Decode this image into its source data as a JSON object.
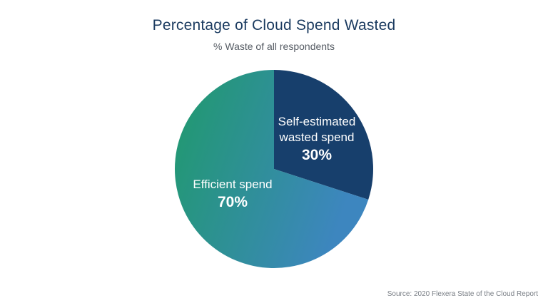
{
  "chart_data": {
    "type": "pie",
    "title": "Percentage of Cloud Spend Wasted",
    "subtitle": "% Waste of all respondents",
    "slices": [
      {
        "label_lines": [
          "Self-estimated",
          "wasted spend"
        ],
        "value": 30,
        "value_label": "30%",
        "color": "#173f6c"
      },
      {
        "label_lines": [
          "Efficient spend"
        ],
        "value": 70,
        "value_label": "70%",
        "gradient": [
          "#1f9a6b",
          "#3d86bf"
        ]
      }
    ],
    "source": "Source: 2020 Flexera State of the Cloud Report"
  }
}
